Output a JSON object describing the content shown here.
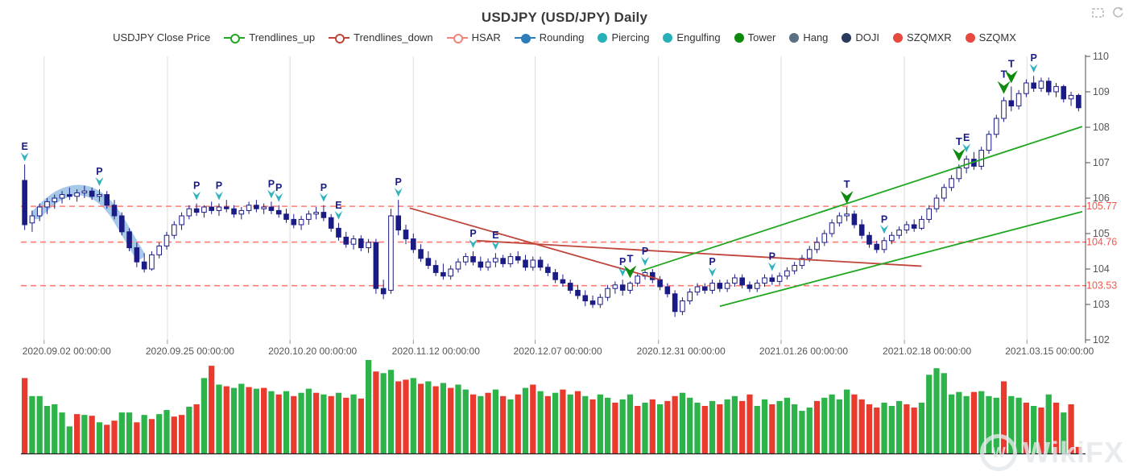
{
  "title": "USDJPY (USD/JPY) Daily",
  "toolbox": {
    "zoom_tool": "area-zoom",
    "restore_tool": "restore"
  },
  "watermark": {
    "logo_letter": "W",
    "text": "WikiFX"
  },
  "legend": [
    {
      "label": "USDJPY Close Price",
      "symbol": "none",
      "color": "#333333"
    },
    {
      "label": "Trendlines_up",
      "symbol": "line-circle",
      "color": "#21a621"
    },
    {
      "label": "Trendlines_down",
      "symbol": "line-circle",
      "color": "#c0453a"
    },
    {
      "label": "HSAR",
      "symbol": "line-circle",
      "color": "#f2837b"
    },
    {
      "label": "Rounding",
      "symbol": "line-dot",
      "color": "#2d7dbb"
    },
    {
      "label": "Piercing",
      "symbol": "dot",
      "color": "#28b0b8"
    },
    {
      "label": "Engulfing",
      "symbol": "dot",
      "color": "#28b0b8"
    },
    {
      "label": "Tower",
      "symbol": "dot",
      "color": "#0c8a0c"
    },
    {
      "label": "Hang",
      "symbol": "dot",
      "color": "#5c7084"
    },
    {
      "label": "DOJI",
      "symbol": "dot",
      "color": "#28395c"
    },
    {
      "label": "SZQMXR",
      "symbol": "dot",
      "color": "#e8493e"
    },
    {
      "label": "SZQMX",
      "symbol": "dot",
      "color": "#e8493e"
    }
  ],
  "chart_data": {
    "type": "candlestick+volume",
    "ylim": [
      102,
      110
    ],
    "y_ticks": [
      102,
      103,
      104,
      105,
      106,
      107,
      108,
      109,
      110
    ],
    "hsar_levels": [
      105.77,
      104.76,
      103.53
    ],
    "x_ticks": [
      {
        "pos": 2.6,
        "label": "2020.09.02 00:00:00"
      },
      {
        "pos": 19.1,
        "label": "2020.09.25 00:00:00"
      },
      {
        "pos": 35.5,
        "label": "2020.10.20 00:00:00"
      },
      {
        "pos": 52.0,
        "label": "2020.11.12 00:00:00"
      },
      {
        "pos": 68.3,
        "label": "2020.12.07 00:00:00"
      },
      {
        "pos": 84.8,
        "label": "2020.12.31 00:00:00"
      },
      {
        "pos": 101.2,
        "label": "2021.01.26 00:00:00"
      },
      {
        "pos": 117.7,
        "label": "2021.02.18 00:00:00"
      },
      {
        "pos": 134.1,
        "label": "2021.03.15 00:00:00"
      }
    ],
    "candles": [
      [
        106.5,
        106.95,
        105.1,
        105.25
      ],
      [
        105.3,
        105.65,
        105.05,
        105.5
      ],
      [
        105.5,
        105.85,
        105.35,
        105.75
      ],
      [
        105.75,
        106.0,
        105.55,
        105.9
      ],
      [
        105.9,
        106.1,
        105.7,
        106.0
      ],
      [
        106.0,
        106.2,
        105.85,
        106.1
      ],
      [
        106.1,
        106.3,
        105.95,
        106.05
      ],
      [
        106.05,
        106.25,
        105.9,
        106.15
      ],
      [
        106.15,
        106.35,
        106.0,
        106.2
      ],
      [
        106.2,
        106.3,
        105.95,
        106.05
      ],
      [
        106.05,
        106.25,
        105.9,
        106.1
      ],
      [
        106.1,
        106.2,
        105.7,
        105.8
      ],
      [
        105.8,
        105.95,
        105.4,
        105.5
      ],
      [
        105.5,
        105.6,
        104.95,
        105.05
      ],
      [
        105.05,
        105.15,
        104.5,
        104.6
      ],
      [
        104.6,
        104.75,
        104.05,
        104.2
      ],
      [
        104.2,
        104.45,
        103.9,
        104.0
      ],
      [
        104.0,
        104.5,
        103.95,
        104.4
      ],
      [
        104.4,
        104.75,
        104.3,
        104.65
      ],
      [
        104.65,
        105.05,
        104.55,
        104.95
      ],
      [
        104.95,
        105.35,
        104.85,
        105.25
      ],
      [
        105.25,
        105.6,
        105.1,
        105.5
      ],
      [
        105.5,
        105.8,
        105.4,
        105.7
      ],
      [
        105.7,
        105.85,
        105.5,
        105.6
      ],
      [
        105.6,
        105.8,
        105.45,
        105.75
      ],
      [
        105.75,
        105.9,
        105.55,
        105.65
      ],
      [
        105.65,
        105.85,
        105.5,
        105.75
      ],
      [
        105.75,
        105.95,
        105.6,
        105.7
      ],
      [
        105.7,
        105.8,
        105.45,
        105.55
      ],
      [
        105.55,
        105.75,
        105.4,
        105.65
      ],
      [
        105.65,
        105.9,
        105.55,
        105.8
      ],
      [
        105.8,
        105.95,
        105.6,
        105.7
      ],
      [
        105.7,
        105.85,
        105.55,
        105.75
      ],
      [
        105.75,
        105.9,
        105.55,
        105.65
      ],
      [
        105.65,
        105.8,
        105.45,
        105.55
      ],
      [
        105.55,
        105.7,
        105.3,
        105.4
      ],
      [
        105.4,
        105.55,
        105.15,
        105.25
      ],
      [
        105.25,
        105.5,
        105.1,
        105.4
      ],
      [
        105.4,
        105.65,
        105.25,
        105.55
      ],
      [
        105.55,
        105.75,
        105.4,
        105.6
      ],
      [
        105.6,
        105.8,
        105.35,
        105.45
      ],
      [
        105.45,
        105.55,
        105.05,
        105.15
      ],
      [
        105.15,
        105.3,
        104.8,
        104.9
      ],
      [
        104.9,
        105.05,
        104.6,
        104.7
      ],
      [
        104.7,
        104.95,
        104.55,
        104.85
      ],
      [
        104.85,
        104.95,
        104.5,
        104.6
      ],
      [
        104.6,
        104.85,
        104.45,
        104.75
      ],
      [
        104.75,
        104.85,
        103.3,
        103.45
      ],
      [
        103.45,
        103.7,
        103.15,
        103.3
      ],
      [
        103.4,
        105.7,
        103.3,
        105.5
      ],
      [
        105.5,
        105.95,
        104.95,
        105.1
      ],
      [
        105.1,
        105.25,
        104.7,
        104.85
      ],
      [
        104.85,
        105.0,
        104.45,
        104.55
      ],
      [
        104.55,
        104.7,
        104.2,
        104.3
      ],
      [
        104.3,
        104.5,
        104.0,
        104.1
      ],
      [
        104.1,
        104.25,
        103.8,
        103.9
      ],
      [
        103.9,
        104.15,
        103.7,
        103.8
      ],
      [
        103.8,
        104.1,
        103.7,
        104.0
      ],
      [
        104.0,
        104.3,
        103.9,
        104.2
      ],
      [
        104.2,
        104.45,
        104.1,
        104.35
      ],
      [
        104.35,
        104.5,
        104.1,
        104.2
      ],
      [
        104.2,
        104.35,
        103.95,
        104.05
      ],
      [
        104.05,
        104.3,
        103.95,
        104.2
      ],
      [
        104.2,
        104.45,
        104.05,
        104.3
      ],
      [
        104.3,
        104.4,
        104.05,
        104.15
      ],
      [
        104.15,
        104.45,
        104.05,
        104.35
      ],
      [
        104.35,
        104.5,
        104.15,
        104.25
      ],
      [
        104.25,
        104.4,
        103.95,
        104.05
      ],
      [
        104.05,
        104.35,
        103.95,
        104.25
      ],
      [
        104.25,
        104.35,
        103.95,
        104.05
      ],
      [
        104.05,
        104.15,
        103.8,
        103.9
      ],
      [
        103.9,
        104.0,
        103.6,
        103.7
      ],
      [
        103.7,
        103.85,
        103.5,
        103.6
      ],
      [
        103.6,
        103.7,
        103.3,
        103.4
      ],
      [
        103.4,
        103.55,
        103.15,
        103.25
      ],
      [
        103.25,
        103.4,
        102.95,
        103.1
      ],
      [
        103.1,
        103.25,
        102.9,
        103.0
      ],
      [
        103.0,
        103.3,
        102.9,
        103.2
      ],
      [
        103.2,
        103.55,
        103.1,
        103.45
      ],
      [
        103.45,
        103.65,
        103.3,
        103.55
      ],
      [
        103.55,
        103.7,
        103.25,
        103.4
      ],
      [
        103.4,
        103.65,
        103.3,
        103.6
      ],
      [
        103.6,
        103.9,
        103.5,
        103.8
      ],
      [
        103.8,
        104.0,
        103.7,
        103.9
      ],
      [
        103.9,
        104.0,
        103.6,
        103.7
      ],
      [
        103.7,
        103.8,
        103.4,
        103.5
      ],
      [
        103.5,
        103.6,
        103.2,
        103.3
      ],
      [
        103.3,
        103.4,
        102.65,
        102.8
      ],
      [
        102.8,
        103.2,
        102.7,
        103.1
      ],
      [
        103.1,
        103.45,
        103.0,
        103.35
      ],
      [
        103.35,
        103.6,
        103.25,
        103.5
      ],
      [
        103.5,
        103.6,
        103.3,
        103.4
      ],
      [
        103.4,
        103.7,
        103.3,
        103.6
      ],
      [
        103.6,
        103.7,
        103.35,
        103.45
      ],
      [
        103.45,
        103.7,
        103.35,
        103.6
      ],
      [
        103.6,
        103.85,
        103.5,
        103.75
      ],
      [
        103.75,
        103.85,
        103.45,
        103.55
      ],
      [
        103.55,
        103.65,
        103.35,
        103.45
      ],
      [
        103.45,
        103.7,
        103.35,
        103.6
      ],
      [
        103.6,
        103.85,
        103.5,
        103.75
      ],
      [
        103.75,
        103.85,
        103.55,
        103.65
      ],
      [
        103.65,
        103.9,
        103.55,
        103.8
      ],
      [
        103.8,
        104.05,
        103.7,
        103.95
      ],
      [
        103.95,
        104.2,
        103.85,
        104.1
      ],
      [
        104.1,
        104.4,
        104.0,
        104.3
      ],
      [
        104.3,
        104.65,
        104.2,
        104.55
      ],
      [
        104.55,
        104.9,
        104.45,
        104.75
      ],
      [
        104.75,
        105.1,
        104.65,
        105.0
      ],
      [
        105.0,
        105.4,
        104.9,
        105.3
      ],
      [
        105.3,
        105.6,
        105.2,
        105.5
      ],
      [
        105.5,
        105.75,
        105.35,
        105.55
      ],
      [
        105.55,
        105.65,
        105.15,
        105.25
      ],
      [
        105.25,
        105.4,
        104.85,
        104.95
      ],
      [
        104.95,
        105.05,
        104.6,
        104.7
      ],
      [
        104.7,
        104.8,
        104.45,
        104.55
      ],
      [
        104.55,
        104.9,
        104.45,
        104.8
      ],
      [
        104.8,
        105.05,
        104.7,
        104.95
      ],
      [
        104.95,
        105.2,
        104.85,
        105.1
      ],
      [
        105.1,
        105.35,
        105.0,
        105.25
      ],
      [
        105.25,
        105.4,
        105.05,
        105.15
      ],
      [
        105.15,
        105.5,
        105.1,
        105.4
      ],
      [
        105.4,
        105.8,
        105.3,
        105.7
      ],
      [
        105.7,
        106.1,
        105.6,
        106.0
      ],
      [
        106.0,
        106.4,
        105.9,
        106.3
      ],
      [
        106.3,
        106.65,
        106.2,
        106.55
      ],
      [
        106.55,
        106.95,
        106.45,
        106.85
      ],
      [
        106.85,
        107.2,
        106.7,
        107.1
      ],
      [
        107.1,
        107.3,
        106.8,
        106.9
      ],
      [
        106.9,
        107.45,
        106.8,
        107.35
      ],
      [
        107.35,
        107.9,
        107.25,
        107.8
      ],
      [
        107.8,
        108.35,
        107.7,
        108.25
      ],
      [
        108.25,
        108.85,
        108.15,
        108.75
      ],
      [
        108.75,
        109.15,
        108.45,
        108.6
      ],
      [
        108.6,
        109.05,
        108.5,
        108.95
      ],
      [
        108.95,
        109.35,
        108.85,
        109.25
      ],
      [
        109.25,
        109.45,
        109.0,
        109.1
      ],
      [
        109.1,
        109.4,
        109.0,
        109.3
      ],
      [
        109.3,
        109.4,
        108.9,
        109.0
      ],
      [
        109.0,
        109.25,
        108.85,
        109.15
      ],
      [
        109.15,
        109.2,
        108.7,
        108.8
      ],
      [
        108.8,
        109.0,
        108.6,
        108.9
      ],
      [
        108.9,
        108.95,
        108.45,
        108.55
      ]
    ],
    "volume": [
      -92,
      70,
      70,
      58,
      60,
      50,
      33,
      -48,
      47,
      -46,
      38,
      -35,
      -40,
      50,
      50,
      -38,
      47,
      -42,
      48,
      53,
      -45,
      -47,
      57,
      -60,
      92,
      -107,
      84,
      -82,
      80,
      85,
      -81,
      79,
      -80,
      76,
      -72,
      76,
      -70,
      74,
      79,
      -74,
      72,
      -70,
      74,
      -68,
      72,
      -67,
      114,
      -100,
      98,
      102,
      -88,
      -90,
      92,
      -85,
      88,
      -82,
      86,
      -80,
      84,
      78,
      -72,
      70,
      -74,
      78,
      -70,
      66,
      -72,
      80,
      -84,
      76,
      -70,
      74,
      -78,
      72,
      -76,
      70,
      -66,
      72,
      68,
      -62,
      66,
      72,
      -58,
      62,
      -66,
      60,
      -64,
      -70,
      74,
      68,
      62,
      -58,
      64,
      -60,
      66,
      70,
      -64,
      -72,
      58,
      66,
      -60,
      64,
      68,
      60,
      52,
      56,
      -64,
      68,
      72,
      66,
      78,
      -72,
      -66,
      -60,
      -56,
      62,
      58,
      64,
      -60,
      -56,
      62,
      96,
      104,
      98,
      72,
      75,
      70,
      -75,
      76,
      70,
      68,
      -88,
      70,
      68,
      -62,
      58,
      -56,
      72,
      -62,
      50,
      -60,
      -8
    ],
    "markers": [
      {
        "i": 0,
        "letter": "E",
        "kind": "p"
      },
      {
        "i": 10,
        "letter": "P",
        "kind": "p"
      },
      {
        "i": 23,
        "letter": "P",
        "kind": "p"
      },
      {
        "i": 26,
        "letter": "P",
        "kind": "p"
      },
      {
        "i": 33,
        "letter": "P",
        "kind": "p"
      },
      {
        "i": 34,
        "letter": "P",
        "kind": "p"
      },
      {
        "i": 40,
        "letter": "P",
        "kind": "p"
      },
      {
        "i": 42,
        "letter": "E",
        "kind": "p"
      },
      {
        "i": 50,
        "letter": "P",
        "kind": "p"
      },
      {
        "i": 60,
        "letter": "P",
        "kind": "p"
      },
      {
        "i": 63,
        "letter": "E",
        "kind": "p"
      },
      {
        "i": 80,
        "letter": "P",
        "kind": "p"
      },
      {
        "i": 81,
        "letter": "T",
        "kind": "t"
      },
      {
        "i": 83,
        "letter": "P",
        "kind": "p"
      },
      {
        "i": 92,
        "letter": "P",
        "kind": "p"
      },
      {
        "i": 100,
        "letter": "P",
        "kind": "p"
      },
      {
        "i": 110,
        "letter": "T",
        "kind": "t"
      },
      {
        "i": 115,
        "letter": "P",
        "kind": "p"
      },
      {
        "i": 125,
        "letter": "T",
        "kind": "t"
      },
      {
        "i": 126,
        "letter": "E",
        "kind": "p"
      },
      {
        "i": 131,
        "letter": "T",
        "kind": "t"
      },
      {
        "i": 132,
        "letter": "T",
        "kind": "t"
      },
      {
        "i": 135,
        "letter": "P",
        "kind": "p"
      }
    ],
    "trendlines": {
      "up": [
        [
          [
            82.5,
            103.95
          ],
          [
            141.5,
            108.02
          ]
        ],
        [
          [
            93.0,
            102.95
          ],
          [
            141.5,
            105.62
          ]
        ]
      ],
      "down": [
        [
          [
            51.5,
            105.72
          ],
          [
            85.0,
            103.7
          ]
        ],
        [
          [
            60.5,
            104.8
          ],
          [
            120.0,
            104.08
          ]
        ]
      ]
    },
    "rounding_band": [
      [
        1.6,
        105.55
      ],
      [
        3.5,
        105.95
      ],
      [
        5.5,
        106.18
      ],
      [
        7.5,
        106.25
      ],
      [
        9.5,
        106.12
      ],
      [
        11.5,
        105.75
      ],
      [
        13.0,
        105.25
      ],
      [
        14.5,
        104.7
      ],
      [
        15.3,
        104.42
      ]
    ],
    "colors": {
      "candle": "#1b1b85",
      "bull_fill": "#ffffff",
      "vol_up": "#2db34a",
      "vol_down": "#ea3a2e",
      "hsar_line": "#ff7d75",
      "hsar_label": "#f4564e",
      "trend_up": "#21a621",
      "trend_down": "#c0453a",
      "band": "#9dc3e6",
      "marker_p": "#2fb3bf",
      "marker_t": "#0e8a0e",
      "marker_letter": "#1b1b85",
      "grid": "#dcdcdc",
      "axis": "#4d4d4d",
      "axis_label": "#555555"
    }
  }
}
